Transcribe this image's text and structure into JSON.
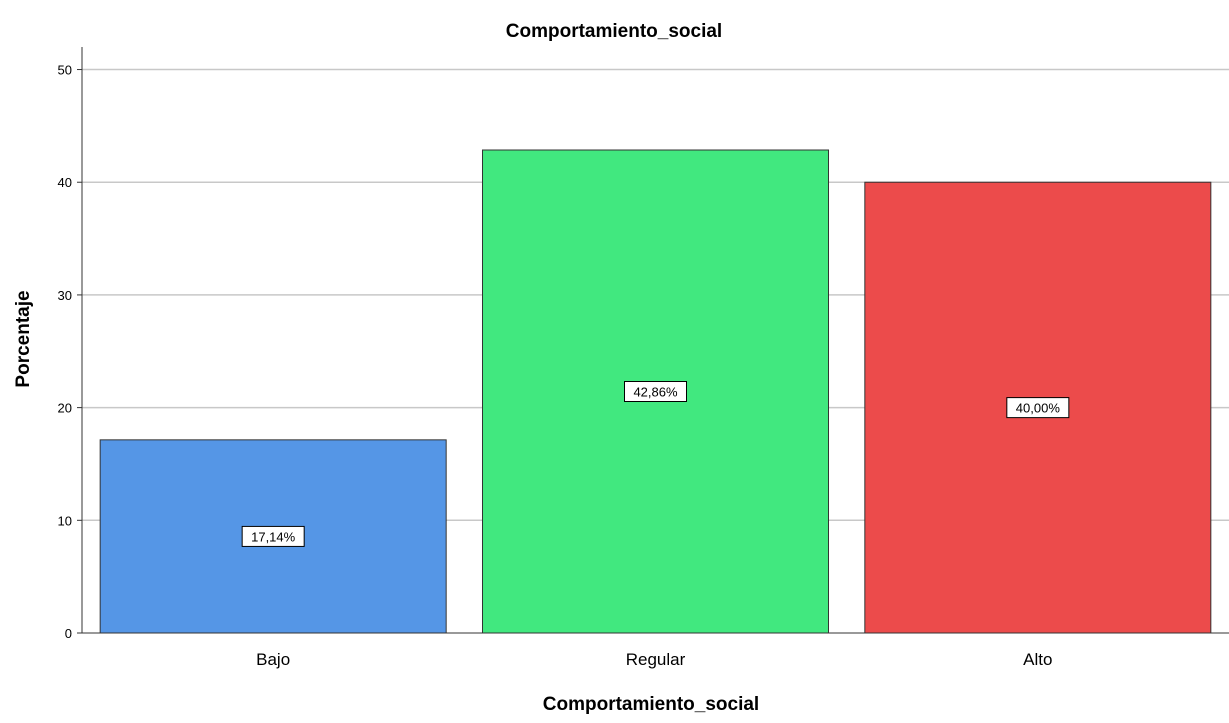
{
  "chart_data": {
    "type": "bar",
    "title": "Comportamiento_social",
    "xlabel": "Comportamiento_social",
    "ylabel": "Porcentaje",
    "categories": [
      "Bajo",
      "Regular",
      "Alto"
    ],
    "values": [
      17.14,
      42.86,
      40.0
    ],
    "data_labels": [
      "17,14%",
      "42,86%",
      "40,00%"
    ],
    "colors": [
      "#5596e6",
      "#41e87f",
      "#ec4b4b"
    ],
    "ylim": [
      0,
      52
    ],
    "yticks": [
      0,
      10,
      20,
      30,
      40,
      50
    ],
    "ytick_labels": [
      "0",
      "10",
      "20",
      "30",
      "40",
      "50"
    ],
    "grid": true,
    "legend": "none"
  }
}
